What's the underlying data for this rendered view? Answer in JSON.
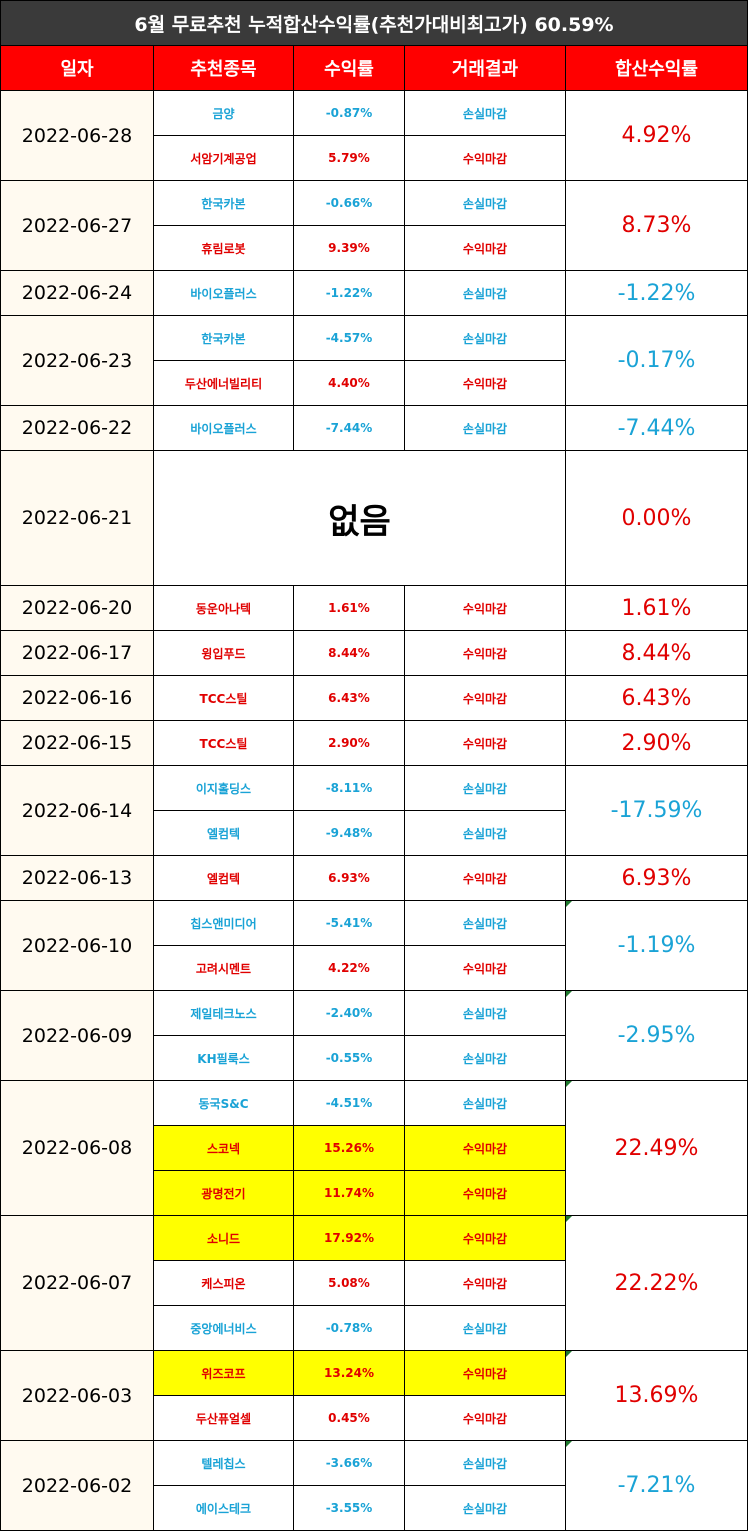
{
  "title": "6월 무료추천 누적합산수익률(추천가대비최고가) 60.59%",
  "headers": [
    "일자",
    "추천종목",
    "수익률",
    "거래결과",
    "합산수익률"
  ],
  "colors": {
    "loss": "#1aa3d6",
    "gain": "#e00000",
    "highlight": "#ffff00",
    "header": "#ff0000"
  },
  "groups": [
    {
      "date": "2022-06-28",
      "total": "4.92%",
      "total_color": "red",
      "rows": [
        {
          "stock": "금양",
          "rate": "-0.87%",
          "result": "손실마감",
          "color": "blue"
        },
        {
          "stock": "서암기계공업",
          "rate": "5.79%",
          "result": "수익마감",
          "color": "red"
        }
      ]
    },
    {
      "date": "2022-06-27",
      "total": "8.73%",
      "total_color": "red",
      "rows": [
        {
          "stock": "한국카본",
          "rate": "-0.66%",
          "result": "손실마감",
          "color": "blue"
        },
        {
          "stock": "휴림로봇",
          "rate": "9.39%",
          "result": "수익마감",
          "color": "red"
        }
      ]
    },
    {
      "date": "2022-06-24",
      "total": "-1.22%",
      "total_color": "blue",
      "rows": [
        {
          "stock": "바이오플러스",
          "rate": "-1.22%",
          "result": "손실마감",
          "color": "blue"
        }
      ]
    },
    {
      "date": "2022-06-23",
      "total": "-0.17%",
      "total_color": "blue",
      "rows": [
        {
          "stock": "한국카본",
          "rate": "-4.57%",
          "result": "손실마감",
          "color": "blue"
        },
        {
          "stock": "두산에너빌리티",
          "rate": "4.40%",
          "result": "수익마감",
          "color": "red"
        }
      ]
    },
    {
      "date": "2022-06-22",
      "total": "-7.44%",
      "total_color": "blue",
      "rows": [
        {
          "stock": "바이오플러스",
          "rate": "-7.44%",
          "result": "손실마감",
          "color": "blue"
        }
      ]
    },
    {
      "date": "2022-06-21",
      "total": "0.00%",
      "total_color": "red",
      "none": "없음",
      "rows": []
    },
    {
      "date": "2022-06-20",
      "total": "1.61%",
      "total_color": "red",
      "rows": [
        {
          "stock": "동운아나텍",
          "rate": "1.61%",
          "result": "수익마감",
          "color": "red"
        }
      ]
    },
    {
      "date": "2022-06-17",
      "total": "8.44%",
      "total_color": "red",
      "rows": [
        {
          "stock": "윙입푸드",
          "rate": "8.44%",
          "result": "수익마감",
          "color": "red"
        }
      ]
    },
    {
      "date": "2022-06-16",
      "total": "6.43%",
      "total_color": "red",
      "rows": [
        {
          "stock": "TCC스틸",
          "rate": "6.43%",
          "result": "수익마감",
          "color": "red"
        }
      ]
    },
    {
      "date": "2022-06-15",
      "total": "2.90%",
      "total_color": "red",
      "rows": [
        {
          "stock": "TCC스틸",
          "rate": "2.90%",
          "result": "수익마감",
          "color": "red"
        }
      ]
    },
    {
      "date": "2022-06-14",
      "total": "-17.59%",
      "total_color": "blue",
      "rows": [
        {
          "stock": "이지홀딩스",
          "rate": "-8.11%",
          "result": "손실마감",
          "color": "blue"
        },
        {
          "stock": "엘컴텍",
          "rate": "-9.48%",
          "result": "손실마감",
          "color": "blue"
        }
      ]
    },
    {
      "date": "2022-06-13",
      "total": "6.93%",
      "total_color": "red",
      "rows": [
        {
          "stock": "엘컴텍",
          "rate": "6.93%",
          "result": "수익마감",
          "color": "red"
        }
      ]
    },
    {
      "date": "2022-06-10",
      "total": "-1.19%",
      "total_color": "blue",
      "rows": [
        {
          "stock": "칩스앤미디어",
          "rate": "-5.41%",
          "result": "손실마감",
          "color": "blue"
        },
        {
          "stock": "고려시멘트",
          "rate": "4.22%",
          "result": "수익마감",
          "color": "red"
        }
      ]
    },
    {
      "date": "2022-06-09",
      "total": "-2.95%",
      "total_color": "blue",
      "rows": [
        {
          "stock": "제일테크노스",
          "rate": "-2.40%",
          "result": "손실마감",
          "color": "blue"
        },
        {
          "stock": "KH필룩스",
          "rate": "-0.55%",
          "result": "손실마감",
          "color": "blue"
        }
      ]
    },
    {
      "date": "2022-06-08",
      "total": "22.49%",
      "total_color": "red",
      "rows": [
        {
          "stock": "동국S&C",
          "rate": "-4.51%",
          "result": "손실마감",
          "color": "blue"
        },
        {
          "stock": "스코넥",
          "rate": "15.26%",
          "result": "수익마감",
          "color": "red",
          "highlight": true
        },
        {
          "stock": "광명전기",
          "rate": "11.74%",
          "result": "수익마감",
          "color": "red",
          "highlight": true
        }
      ]
    },
    {
      "date": "2022-06-07",
      "total": "22.22%",
      "total_color": "red",
      "rows": [
        {
          "stock": "소니드",
          "rate": "17.92%",
          "result": "수익마감",
          "color": "red",
          "highlight": true
        },
        {
          "stock": "케스피온",
          "rate": "5.08%",
          "result": "수익마감",
          "color": "red"
        },
        {
          "stock": "중앙에너비스",
          "rate": "-0.78%",
          "result": "손실마감",
          "color": "blue"
        }
      ]
    },
    {
      "date": "2022-06-03",
      "total": "13.69%",
      "total_color": "red",
      "rows": [
        {
          "stock": "위즈코프",
          "rate": "13.24%",
          "result": "수익마감",
          "color": "red",
          "highlight": true
        },
        {
          "stock": "두산퓨얼셀",
          "rate": "0.45%",
          "result": "수익마감",
          "color": "red"
        }
      ]
    },
    {
      "date": "2022-06-02",
      "total": "-7.21%",
      "total_color": "blue",
      "rows": [
        {
          "stock": "텔레칩스",
          "rate": "-3.66%",
          "result": "손실마감",
          "color": "blue"
        },
        {
          "stock": "에이스테크",
          "rate": "-3.55%",
          "result": "손실마감",
          "color": "blue"
        }
      ]
    }
  ]
}
